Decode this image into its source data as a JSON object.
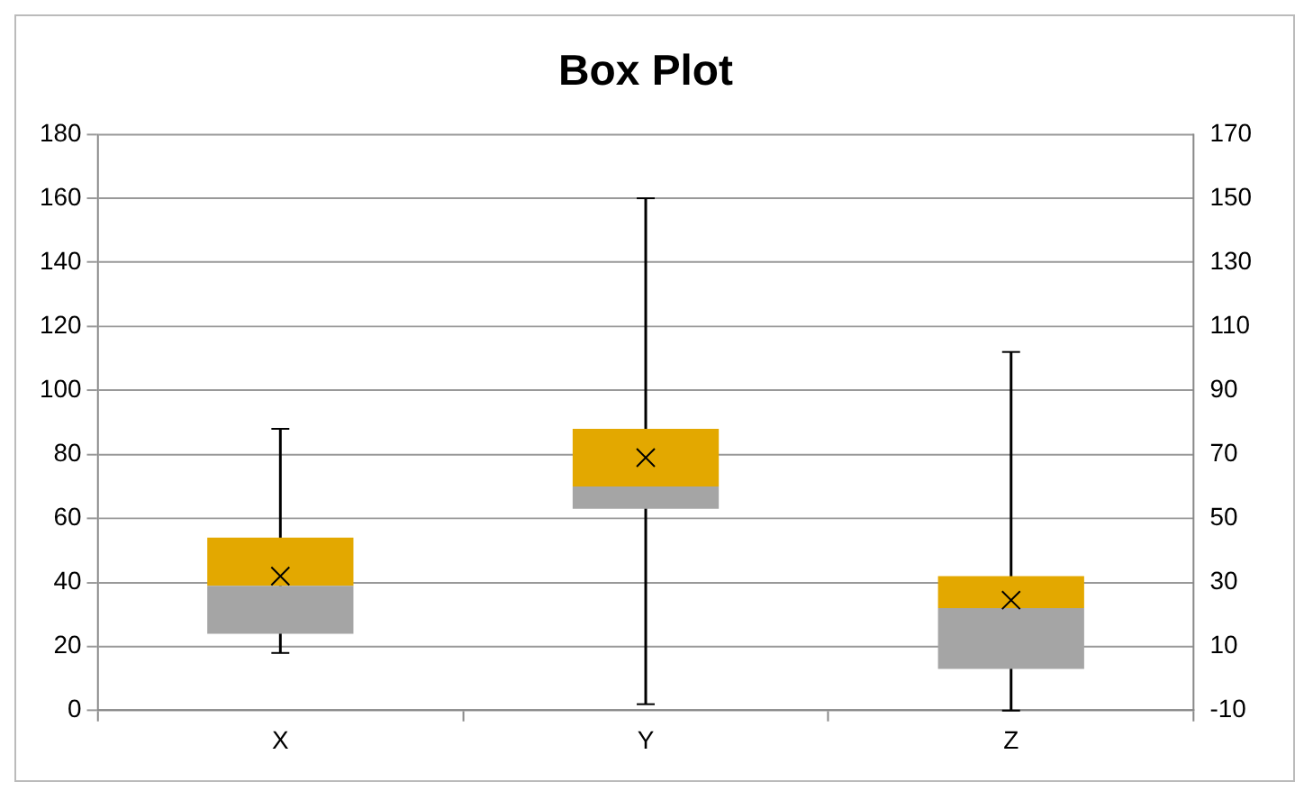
{
  "chart_data": {
    "type": "box",
    "title": "Box Plot",
    "categories": [
      "X",
      "Y",
      "Z"
    ],
    "boxes": [
      {
        "low": 18,
        "q1": 24,
        "median": 39,
        "q3": 54,
        "high": 88,
        "mean": 42
      },
      {
        "low": 2,
        "q1": 63,
        "median": 70,
        "q3": 88,
        "high": 160,
        "mean": 79
      },
      {
        "low": 0,
        "q1": 13,
        "median": 32,
        "q3": 42,
        "high": 112,
        "mean": 34.5
      }
    ],
    "color": "#e3a800",
    "colors": [
      "#a5a5a5",
      "#a5a5a5",
      "#a5a5a5"
    ],
    "ylim": [
      0,
      180
    ],
    "yticks": [
      0,
      20,
      40,
      60,
      80,
      100,
      120,
      140,
      160,
      180
    ],
    "y2lim": [
      -10,
      170
    ],
    "y2ticks": [
      -10,
      10,
      30,
      50,
      70,
      90,
      110,
      130,
      150,
      170
    ],
    "grid": "y",
    "marker": "cross"
  }
}
